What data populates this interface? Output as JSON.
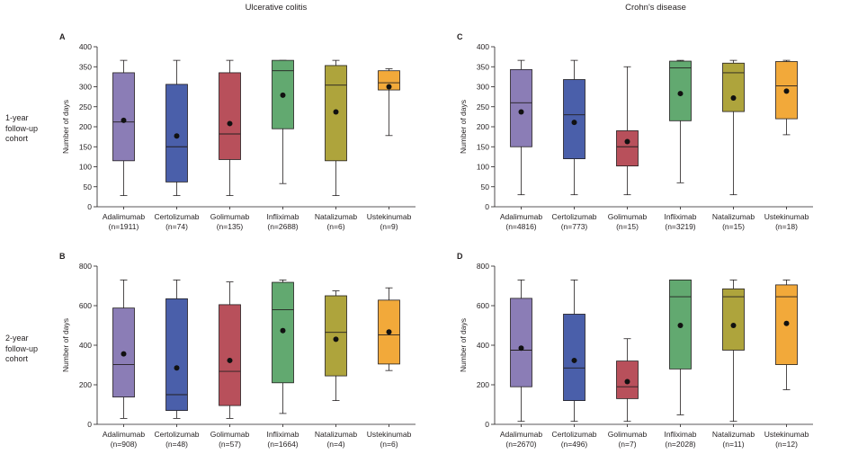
{
  "headers": {
    "left": "Ulcerative colitis",
    "right": "Crohn's disease"
  },
  "row_labels": [
    {
      "lines": [
        "1-year",
        "follow-up",
        "cohort"
      ]
    },
    {
      "lines": [
        "2-year",
        "follow-up",
        "cohort"
      ]
    }
  ],
  "colors": {
    "Adalimumab": "#8b7db6",
    "Certolizumab": "#4a5faa",
    "Golimumab": "#b8505b",
    "Infliximab": "#62a970",
    "Natalizumab": "#aea43c",
    "Ustekinumab": "#f2a93a"
  },
  "chart_data": [
    {
      "panel": "A",
      "type": "box",
      "ylabel": "Number of days",
      "ylim": [
        0,
        400
      ],
      "yticks": [
        0,
        50,
        100,
        150,
        200,
        250,
        300,
        350,
        400
      ],
      "categories": [
        "Adalimumab",
        "Certolizumab",
        "Golimumab",
        "Infliximab",
        "Natalizumab",
        "Ustekinumab"
      ],
      "n_labels": [
        "(n=1911)",
        "(n=74)",
        "(n=135)",
        "(n=2688)",
        "(n=6)",
        "(n=9)"
      ],
      "boxes": [
        {
          "min": 28,
          "q1": 115,
          "median": 212,
          "q3": 335,
          "max": 366,
          "mean": 216
        },
        {
          "min": 28,
          "q1": 62,
          "median": 150,
          "q3": 306,
          "max": 366,
          "mean": 177
        },
        {
          "min": 28,
          "q1": 118,
          "median": 182,
          "q3": 335,
          "max": 366,
          "mean": 208
        },
        {
          "min": 58,
          "q1": 195,
          "median": 340,
          "q3": 366,
          "max": 366,
          "mean": 279
        },
        {
          "min": 28,
          "q1": 115,
          "median": 304,
          "q3": 353,
          "max": 366,
          "mean": 237
        },
        {
          "min": 178,
          "q1": 292,
          "median": 310,
          "q3": 340,
          "max": 345,
          "mean": 300
        }
      ]
    },
    {
      "panel": "B",
      "type": "box",
      "ylabel": "Number of days",
      "ylim": [
        0,
        800
      ],
      "yticks": [
        0,
        200,
        400,
        600,
        800
      ],
      "categories": [
        "Adalimumab",
        "Certolizumab",
        "Golimumab",
        "Infliximab",
        "Natalizumab",
        "Ustekinumab"
      ],
      "n_labels": [
        "(n=908)",
        "(n=48)",
        "(n=57)",
        "(n=1664)",
        "(n=4)",
        "(n=6)"
      ],
      "boxes": [
        {
          "min": 30,
          "q1": 138,
          "median": 302,
          "q3": 588,
          "max": 730,
          "mean": 356
        },
        {
          "min": 30,
          "q1": 70,
          "median": 150,
          "q3": 635,
          "max": 730,
          "mean": 285
        },
        {
          "min": 30,
          "q1": 95,
          "median": 268,
          "q3": 605,
          "max": 720,
          "mean": 323
        },
        {
          "min": 55,
          "q1": 210,
          "median": 580,
          "q3": 718,
          "max": 730,
          "mean": 474
        },
        {
          "min": 120,
          "q1": 245,
          "median": 465,
          "q3": 650,
          "max": 675,
          "mean": 430
        },
        {
          "min": 272,
          "q1": 305,
          "median": 452,
          "q3": 628,
          "max": 690,
          "mean": 467
        }
      ]
    },
    {
      "panel": "C",
      "type": "box",
      "ylabel": "Number of days",
      "ylim": [
        0,
        400
      ],
      "yticks": [
        0,
        50,
        100,
        150,
        200,
        250,
        300,
        350,
        400
      ],
      "categories": [
        "Adalimumab",
        "Certolizumab",
        "Golimumab",
        "Infliximab",
        "Natalizumab",
        "Ustekinumab"
      ],
      "n_labels": [
        "(n=4816)",
        "(n=773)",
        "(n=15)",
        "(n=3219)",
        "(n=15)",
        "(n=18)"
      ],
      "boxes": [
        {
          "min": 30,
          "q1": 150,
          "median": 260,
          "q3": 343,
          "max": 366,
          "mean": 237
        },
        {
          "min": 30,
          "q1": 120,
          "median": 230,
          "q3": 318,
          "max": 366,
          "mean": 211
        },
        {
          "min": 30,
          "q1": 102,
          "median": 150,
          "q3": 190,
          "max": 350,
          "mean": 163
        },
        {
          "min": 60,
          "q1": 215,
          "median": 347,
          "q3": 364,
          "max": 366,
          "mean": 283
        },
        {
          "min": 30,
          "q1": 238,
          "median": 335,
          "q3": 359,
          "max": 366,
          "mean": 272
        },
        {
          "min": 180,
          "q1": 220,
          "median": 302,
          "q3": 363,
          "max": 366,
          "mean": 289
        }
      ]
    },
    {
      "panel": "D",
      "type": "box",
      "ylabel": "Number of days",
      "ylim": [
        0,
        800
      ],
      "yticks": [
        0,
        200,
        400,
        600,
        800
      ],
      "categories": [
        "Adalimumab",
        "Certolizumab",
        "Golimumab",
        "Infliximab",
        "Natalizumab",
        "Ustekinumab"
      ],
      "n_labels": [
        "(n=2670)",
        "(n=496)",
        "(n=7)",
        "(n=2028)",
        "(n=11)",
        "(n=12)"
      ],
      "boxes": [
        {
          "min": 15,
          "q1": 190,
          "median": 375,
          "q3": 637,
          "max": 730,
          "mean": 385
        },
        {
          "min": 15,
          "q1": 120,
          "median": 285,
          "q3": 557,
          "max": 730,
          "mean": 323
        },
        {
          "min": 15,
          "q1": 130,
          "median": 190,
          "q3": 320,
          "max": 433,
          "mean": 216
        },
        {
          "min": 48,
          "q1": 280,
          "median": 645,
          "q3": 730,
          "max": 730,
          "mean": 500
        },
        {
          "min": 15,
          "q1": 375,
          "median": 645,
          "q3": 685,
          "max": 730,
          "mean": 500
        },
        {
          "min": 175,
          "q1": 302,
          "median": 645,
          "q3": 705,
          "max": 730,
          "mean": 510
        }
      ]
    }
  ]
}
